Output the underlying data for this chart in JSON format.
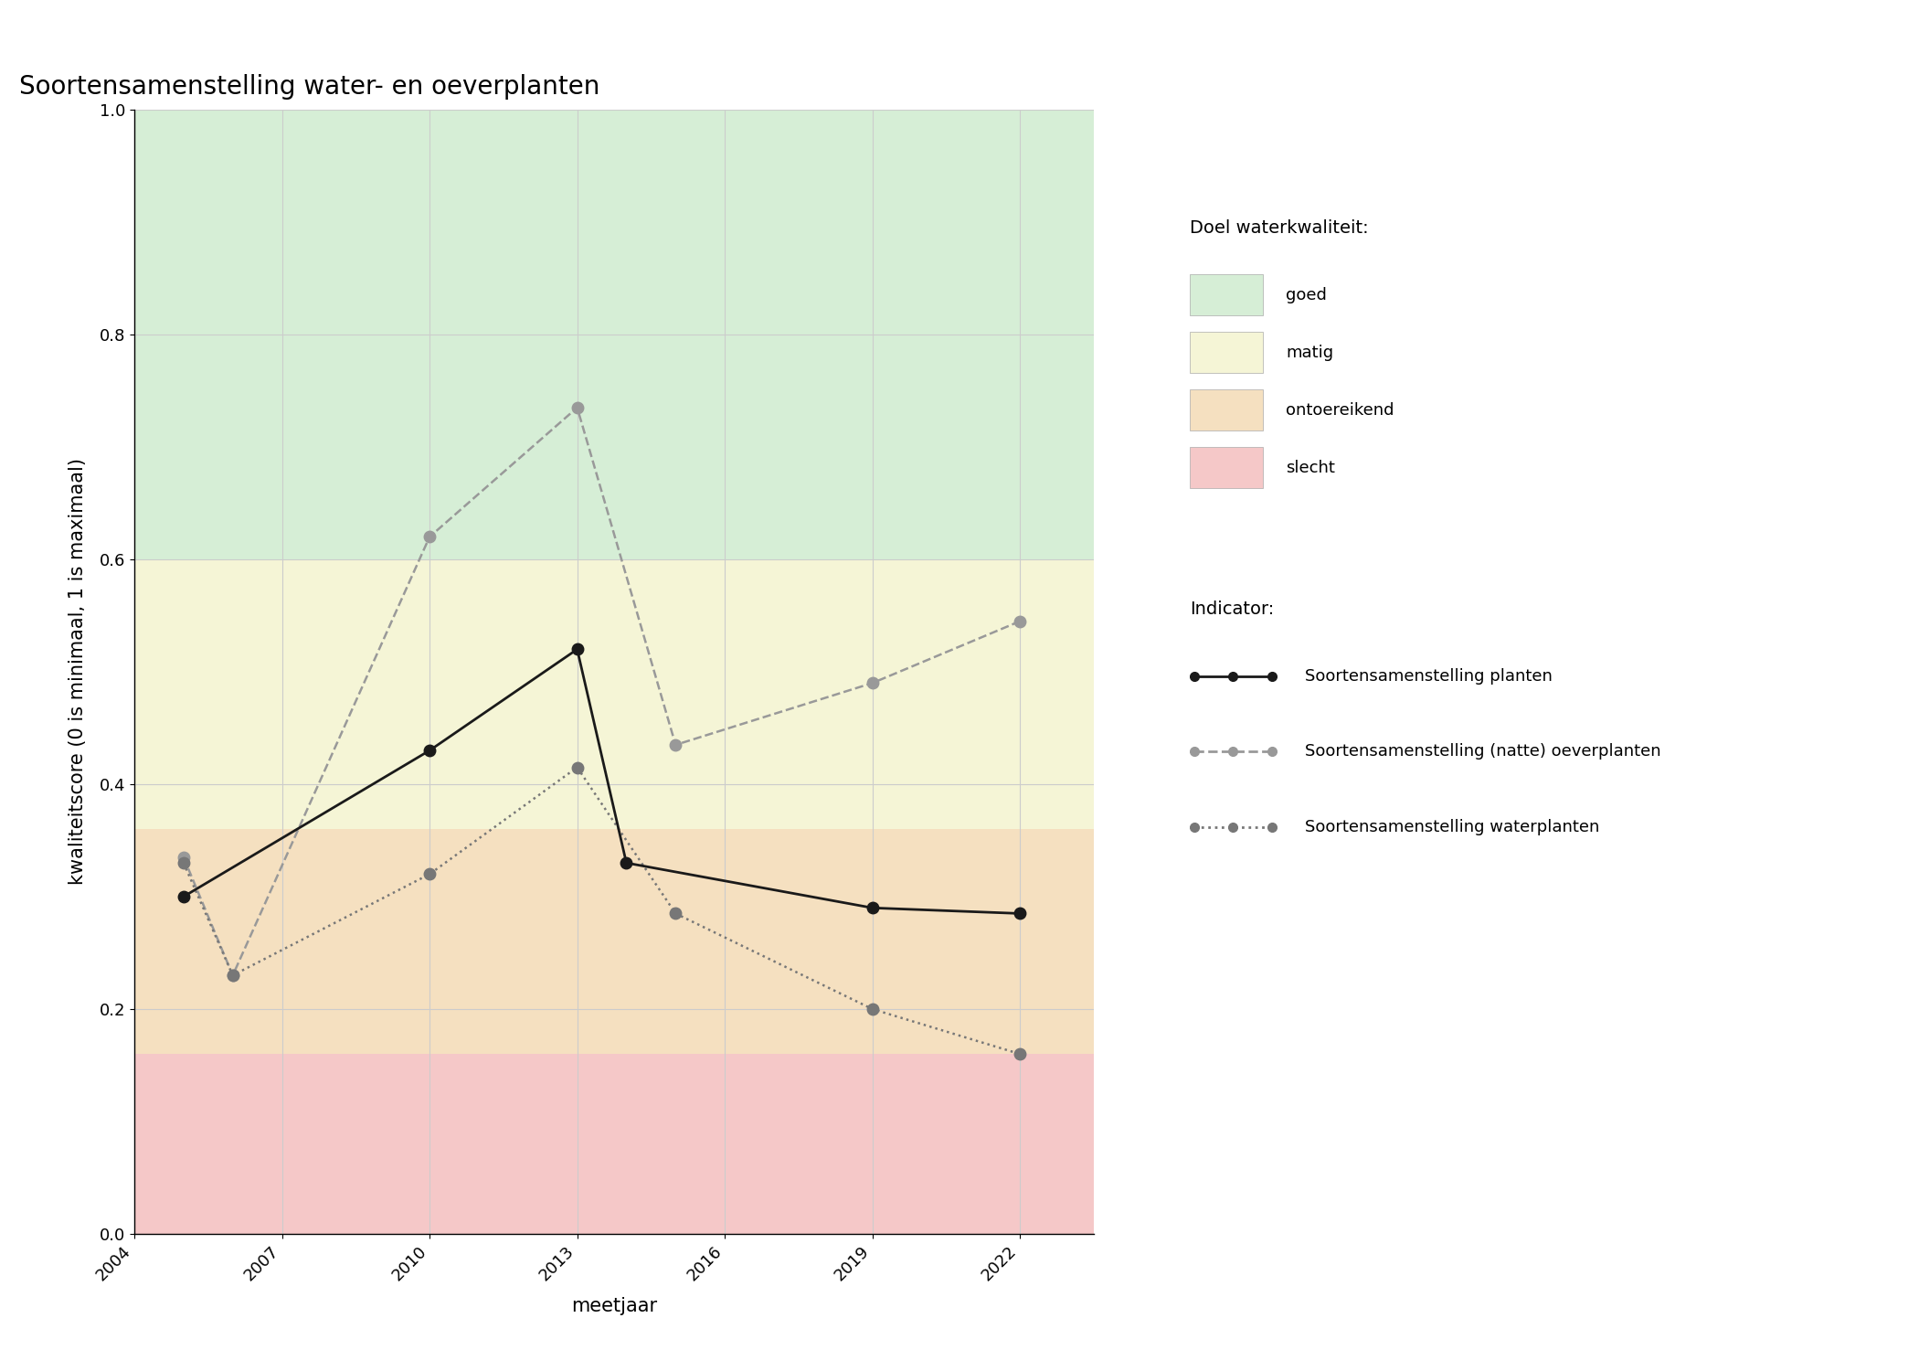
{
  "title": "Soortensamenstelling water- en oeverplanten",
  "xlabel": "meetjaar",
  "ylabel": "kwaliteitscore (0 is minimaal, 1 is maximaal)",
  "xlim": [
    2004,
    2023.5
  ],
  "ylim": [
    0.0,
    1.0
  ],
  "xticks": [
    2004,
    2007,
    2010,
    2013,
    2016,
    2019,
    2022
  ],
  "yticks": [
    0.0,
    0.2,
    0.4,
    0.6,
    0.8,
    1.0
  ],
  "background_zones": [
    {
      "ymin": 0.6,
      "ymax": 1.0,
      "color": "#d6eed6",
      "label": "goed"
    },
    {
      "ymin": 0.36,
      "ymax": 0.6,
      "color": "#f5f5d6",
      "label": "matig"
    },
    {
      "ymin": 0.16,
      "ymax": 0.36,
      "color": "#f5e0c0",
      "label": "ontoereikend"
    },
    {
      "ymin": 0.0,
      "ymax": 0.16,
      "color": "#f5c8c8",
      "label": "slecht"
    }
  ],
  "series_planten": {
    "years": [
      2005,
      2010,
      2013,
      2014,
      2019,
      2022
    ],
    "values": [
      0.3,
      0.43,
      0.52,
      0.33,
      0.29,
      0.285
    ],
    "color": "#1a1a1a",
    "linestyle": "solid",
    "marker": "o",
    "markersize": 9,
    "linewidth": 2.0,
    "label": "Soortensamenstelling planten"
  },
  "series_oeverplanten": {
    "years": [
      2005,
      2006,
      2010,
      2013,
      2015,
      2019,
      2022
    ],
    "values": [
      0.335,
      0.23,
      0.62,
      0.735,
      0.435,
      0.49,
      0.545
    ],
    "color": "#999999",
    "linestyle": "dashed",
    "marker": "o",
    "markersize": 9,
    "linewidth": 1.8,
    "label": "Soortensamenstelling (natte) oeverplanten"
  },
  "series_waterplanten": {
    "years": [
      2005,
      2006,
      2010,
      2013,
      2015,
      2019,
      2022
    ],
    "values": [
      0.33,
      0.23,
      0.32,
      0.415,
      0.285,
      0.2,
      0.16
    ],
    "color": "#777777",
    "linestyle": "dotted",
    "marker": "o",
    "markersize": 9,
    "linewidth": 1.8,
    "label": "Soortensamenstelling waterplanten"
  },
  "legend_title_kwal": "Doel waterkwaliteit:",
  "legend_title_ind": "Indicator:",
  "background_color": "#ffffff",
  "grid_color": "#cccccc",
  "title_fontsize": 20,
  "axis_label_fontsize": 15,
  "tick_fontsize": 13,
  "legend_fontsize": 13
}
